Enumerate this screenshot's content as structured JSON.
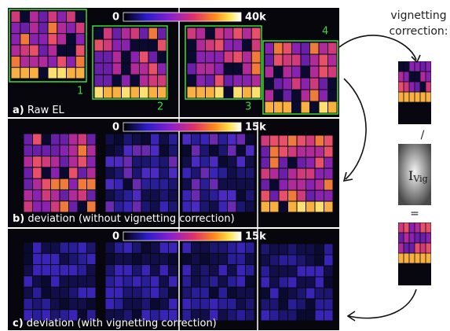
{
  "panels": [
    {
      "letter": "a)",
      "label": "Raw EL",
      "colorbar": {
        "min": "0",
        "max": "40k"
      }
    },
    {
      "letter": "b)",
      "label": "deviation (without vignetting correction)",
      "colorbar": {
        "min": "0",
        "max": "15k"
      }
    },
    {
      "letter": "c)",
      "label": "deviation  (with vignetting correction)",
      "colorbar": {
        "min": "0",
        "max": "15k"
      }
    }
  ],
  "region_numbers": [
    "1",
    "2",
    "3",
    "4"
  ],
  "side": {
    "title": "vignetting correction:",
    "divide": "/",
    "ivig": {
      "base": "I",
      "sub": "Vig"
    },
    "equals": "="
  }
}
